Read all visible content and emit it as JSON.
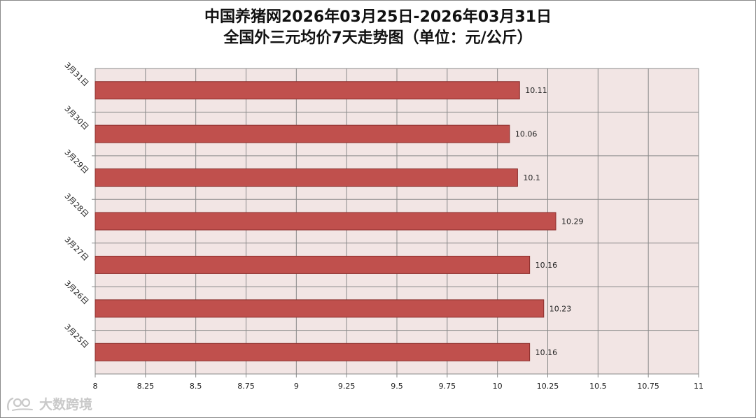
{
  "title_line1": "中国养猪网2026年03月25日-2026年03月31日",
  "title_line2": "全国外三元均价7天走势图（单位：元/公斤）",
  "watermark": {
    "text": "大数跨境"
  },
  "colors": {
    "bar_fill": "#c0504d",
    "bar_stroke": "#8b2f2d",
    "plot_bg": "#f2e5e4",
    "grid": "#8a8a8a"
  },
  "chart_data": {
    "type": "bar",
    "orientation": "horizontal",
    "title": "中国养猪网2026年03月25日-2026年03月31日 全国外三元均价7天走势图（单位：元/公斤）",
    "categories": [
      "3月31日",
      "3月30日",
      "3月29日",
      "3月28日",
      "3月27日",
      "3月26日",
      "3月25日"
    ],
    "values": [
      10.11,
      10.06,
      10.1,
      10.29,
      10.16,
      10.23,
      10.16
    ],
    "value_labels": [
      "10.11",
      "10.06",
      "10.1",
      "10.29",
      "10.16",
      "10.23",
      "10.16"
    ],
    "xlim": [
      8,
      11
    ],
    "xticks": [
      "8",
      "8.25",
      "8.5",
      "8.75",
      "9",
      "9.25",
      "9.5",
      "9.75",
      "10",
      "10.25",
      "10.5",
      "10.75",
      "11"
    ],
    "xtick_values": [
      8,
      8.25,
      8.5,
      8.75,
      9,
      9.25,
      9.5,
      9.75,
      10,
      10.25,
      10.5,
      10.75,
      11
    ],
    "grid": true,
    "legend": "none"
  }
}
